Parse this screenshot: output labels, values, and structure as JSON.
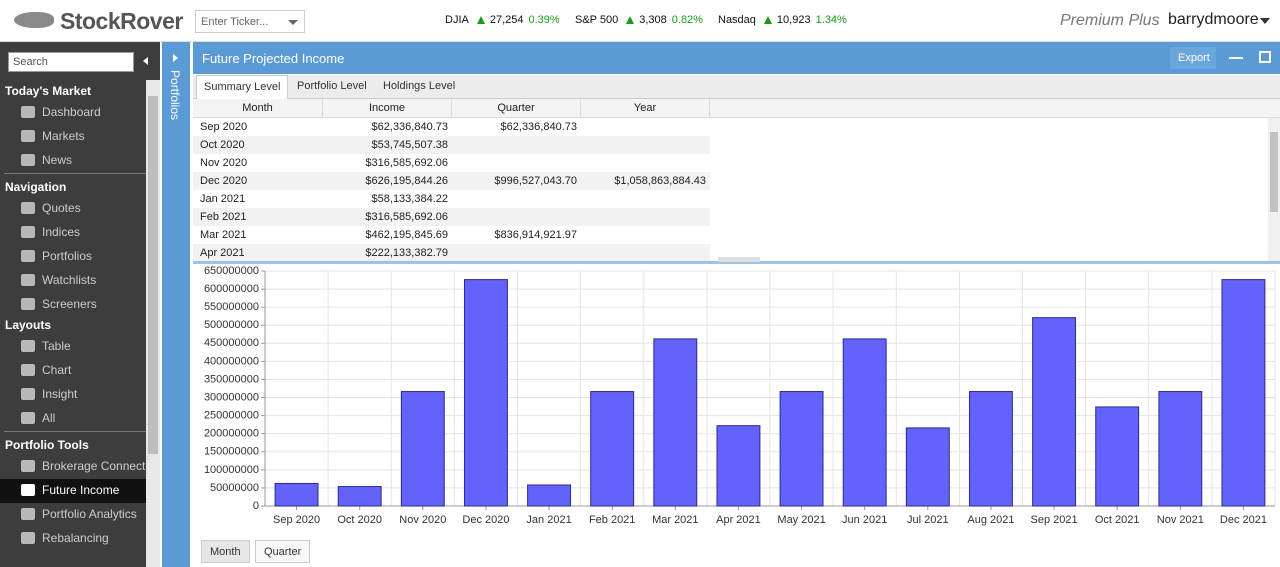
{
  "header": {
    "logo": "StockRover",
    "ticker_placeholder": "Enter Ticker...",
    "indices": [
      {
        "name": "DJIA",
        "value": "27,254",
        "change": "0.39%"
      },
      {
        "name": "S&P 500",
        "value": "3,308",
        "change": "0.82%"
      },
      {
        "name": "Nasdaq",
        "value": "10,923",
        "change": "1.34%"
      }
    ],
    "plan": "Premium Plus",
    "user": "barrydmoore"
  },
  "sidebar": {
    "search_placeholder": "Search",
    "sections": [
      {
        "title": "Today's Market",
        "items": [
          "Dashboard",
          "Markets",
          "News"
        ]
      },
      {
        "title": "Navigation",
        "items": [
          "Quotes",
          "Indices",
          "Portfolios",
          "Watchlists",
          "Screeners"
        ]
      },
      {
        "title": "Layouts",
        "items": [
          "Table",
          "Chart",
          "Insight",
          "All"
        ]
      },
      {
        "title": "Portfolio Tools",
        "items": [
          "Brokerage Connect",
          "Future Income",
          "Portfolio Analytics",
          "Rebalancing"
        ],
        "active_index": 1
      }
    ],
    "portfolios_tab": "Portfolios"
  },
  "panel": {
    "title": "Future Projected Income",
    "export": "Export",
    "tabs": [
      "Summary Level",
      "Portfolio Level",
      "Holdings Level"
    ],
    "active_tab": 0,
    "table": {
      "columns": [
        "Month",
        "Income",
        "Quarter",
        "Year"
      ],
      "rows": [
        [
          "Sep 2020",
          "$62,336,840.73",
          "$62,336,840.73",
          null
        ],
        [
          "Oct 2020",
          "$53,745,507.38",
          null,
          null
        ],
        [
          "Nov 2020",
          "$316,585,692.06",
          null,
          null
        ],
        [
          "Dec 2020",
          "$626,195,844.26",
          "$996,527,043.70",
          "$1,058,863,884.43"
        ],
        [
          "Jan 2021",
          "$58,133,384.22",
          null,
          null
        ],
        [
          "Feb 2021",
          "$316,585,692.06",
          null,
          null
        ],
        [
          "Mar 2021",
          "$462,195,845.69",
          "$836,914,921.97",
          null
        ],
        [
          "Apr 2021",
          "$222,133,382.79",
          null,
          null
        ]
      ]
    },
    "buttons": [
      "Month",
      "Quarter"
    ]
  },
  "chart_data": {
    "type": "bar",
    "categories": [
      "Sep 2020",
      "Oct 2020",
      "Nov 2020",
      "Dec 2020",
      "Jan 2021",
      "Feb 2021",
      "Mar 2021",
      "Apr 2021",
      "May 2021",
      "Jun 2021",
      "Jul 2021",
      "Aug 2021",
      "Sep 2021",
      "Oct 2021",
      "Nov 2021",
      "Dec 2021"
    ],
    "values": [
      62336840.73,
      53745507.38,
      316585692.06,
      626195844.26,
      58133384.22,
      316585692.06,
      462195845.69,
      222133382.79,
      316585692.06,
      462195845.69,
      216000000,
      316585692.06,
      521000000,
      274000000,
      316585692.06,
      626195844.26
    ],
    "color": "#6363fb",
    "ylim": [
      0,
      650000000
    ],
    "yticks": [
      0,
      50000000,
      100000000,
      150000000,
      200000000,
      250000000,
      300000000,
      350000000,
      400000000,
      450000000,
      500000000,
      550000000,
      600000000,
      650000000
    ],
    "grid": true
  }
}
